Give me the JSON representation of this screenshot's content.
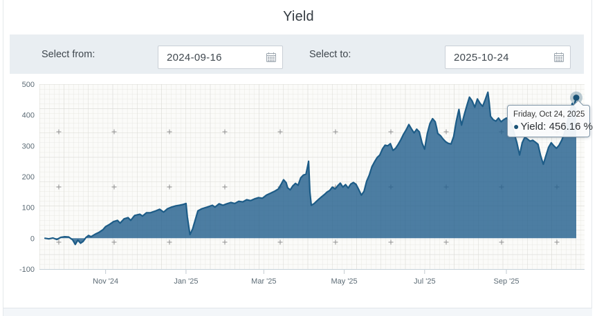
{
  "header": {
    "title": "Yield"
  },
  "controls": {
    "from": {
      "label": "Select from:",
      "value": "2024-09-16"
    },
    "to": {
      "label": "Select to:",
      "value": "2025-10-24"
    }
  },
  "colors": {
    "accent_line": "#1d5c87",
    "area_fill": "rgba(32,94,140,0.8)",
    "marker": "#1a5276",
    "panel_bg": "#e9eef2",
    "grid_minor": "#e7e7e2",
    "grid_major": "#d9d9d4",
    "axis_label": "#5c6b75"
  },
  "chart_data": {
    "type": "area",
    "title": "Yield",
    "xlabel": "",
    "ylabel": "",
    "unit": "%",
    "ylim": [
      -100,
      500
    ],
    "xlim_days": [
      0,
      403
    ],
    "x_start_date": "2024-09-16",
    "x_end_date": "2025-10-24",
    "threshold": 0,
    "grid": true,
    "legend": false,
    "yticks": [
      500,
      400,
      300,
      200,
      100,
      0,
      -100
    ],
    "xticks": [
      {
        "label": "Nov '24",
        "day": 46
      },
      {
        "label": "Jan '25",
        "day": 107
      },
      {
        "label": "Mar '25",
        "day": 166
      },
      {
        "label": "May '25",
        "day": 227
      },
      {
        "label": "Jul '25",
        "day": 288
      },
      {
        "label": "Sep '25",
        "day": 350
      }
    ],
    "series": [
      {
        "name": "Yield",
        "points": [
          [
            0,
            0
          ],
          [
            3,
            -2
          ],
          [
            6,
            1
          ],
          [
            9,
            -4
          ],
          [
            12,
            3
          ],
          [
            15,
            5
          ],
          [
            18,
            4
          ],
          [
            21,
            -5
          ],
          [
            23,
            -20
          ],
          [
            25,
            -6
          ],
          [
            27,
            -16
          ],
          [
            29,
            -10
          ],
          [
            31,
            2
          ],
          [
            33,
            9
          ],
          [
            35,
            5
          ],
          [
            38,
            13
          ],
          [
            41,
            19
          ],
          [
            44,
            28
          ],
          [
            46,
            38
          ],
          [
            49,
            45
          ],
          [
            52,
            54
          ],
          [
            55,
            58
          ],
          [
            57,
            49
          ],
          [
            60,
            63
          ],
          [
            63,
            67
          ],
          [
            65,
            58
          ],
          [
            68,
            74
          ],
          [
            72,
            78
          ],
          [
            74,
            72
          ],
          [
            77,
            83
          ],
          [
            80,
            83
          ],
          [
            84,
            89
          ],
          [
            87,
            94
          ],
          [
            90,
            85
          ],
          [
            93,
            96
          ],
          [
            96,
            101
          ],
          [
            99,
            105
          ],
          [
            102,
            107
          ],
          [
            105,
            110
          ],
          [
            107,
            113
          ],
          [
            108,
            70
          ],
          [
            110,
            12
          ],
          [
            112,
            30
          ],
          [
            114,
            60
          ],
          [
            116,
            89
          ],
          [
            119,
            96
          ],
          [
            123,
            101
          ],
          [
            127,
            107
          ],
          [
            129,
            101
          ],
          [
            132,
            112
          ],
          [
            135,
            107
          ],
          [
            138,
            112
          ],
          [
            141,
            116
          ],
          [
            144,
            113
          ],
          [
            147,
            120
          ],
          [
            150,
            118
          ],
          [
            153,
            125
          ],
          [
            156,
            122
          ],
          [
            159,
            128
          ],
          [
            162,
            132
          ],
          [
            165,
            130
          ],
          [
            168,
            140
          ],
          [
            171,
            146
          ],
          [
            174,
            152
          ],
          [
            177,
            160
          ],
          [
            179,
            174
          ],
          [
            181,
            190
          ],
          [
            183,
            180
          ],
          [
            184,
            164
          ],
          [
            186,
            157
          ],
          [
            188,
            170
          ],
          [
            190,
            178
          ],
          [
            192,
            172
          ],
          [
            194,
            196
          ],
          [
            196,
            205
          ],
          [
            198,
            208
          ],
          [
            199,
            228
          ],
          [
            200,
            250
          ],
          [
            201,
            150
          ],
          [
            202,
            107
          ],
          [
            204,
            112
          ],
          [
            206,
            120
          ],
          [
            208,
            128
          ],
          [
            210,
            135
          ],
          [
            212,
            142
          ],
          [
            214,
            150
          ],
          [
            216,
            155
          ],
          [
            218,
            166
          ],
          [
            220,
            160
          ],
          [
            222,
            170
          ],
          [
            224,
            179
          ],
          [
            226,
            166
          ],
          [
            228,
            174
          ],
          [
            230,
            163
          ],
          [
            232,
            176
          ],
          [
            234,
            181
          ],
          [
            236,
            175
          ],
          [
            238,
            158
          ],
          [
            240,
            140
          ],
          [
            242,
            152
          ],
          [
            244,
            185
          ],
          [
            246,
            205
          ],
          [
            248,
            232
          ],
          [
            250,
            248
          ],
          [
            252,
            262
          ],
          [
            254,
            270
          ],
          [
            256,
            290
          ],
          [
            258,
            302
          ],
          [
            260,
            300
          ],
          [
            262,
            307
          ],
          [
            264,
            285
          ],
          [
            266,
            292
          ],
          [
            268,
            305
          ],
          [
            270,
            320
          ],
          [
            272,
            338
          ],
          [
            274,
            352
          ],
          [
            276,
            369
          ],
          [
            278,
            355
          ],
          [
            280,
            342
          ],
          [
            282,
            354
          ],
          [
            284,
            345
          ],
          [
            286,
            310
          ],
          [
            288,
            289
          ],
          [
            290,
            340
          ],
          [
            292,
            372
          ],
          [
            294,
            388
          ],
          [
            296,
            378
          ],
          [
            297,
            360
          ],
          [
            298,
            340
          ],
          [
            300,
            333
          ],
          [
            302,
            322
          ],
          [
            304,
            313
          ],
          [
            306,
            308
          ],
          [
            308,
            306
          ],
          [
            310,
            330
          ],
          [
            312,
            380
          ],
          [
            314,
            418
          ],
          [
            315,
            390
          ],
          [
            316,
            367
          ],
          [
            318,
            400
          ],
          [
            320,
            430
          ],
          [
            322,
            458
          ],
          [
            324,
            446
          ],
          [
            326,
            425
          ],
          [
            328,
            452
          ],
          [
            330,
            438
          ],
          [
            332,
            428
          ],
          [
            334,
            450
          ],
          [
            336,
            474
          ],
          [
            337,
            440
          ],
          [
            338,
            396
          ],
          [
            340,
            385
          ],
          [
            342,
            380
          ],
          [
            344,
            390
          ],
          [
            346,
            378
          ],
          [
            348,
            385
          ],
          [
            350,
            390
          ],
          [
            352,
            382
          ],
          [
            354,
            370
          ],
          [
            356,
            340
          ],
          [
            358,
            310
          ],
          [
            360,
            270
          ],
          [
            361,
            290
          ],
          [
            362,
            310
          ],
          [
            364,
            328
          ],
          [
            366,
            322
          ],
          [
            368,
            315
          ],
          [
            370,
            318
          ],
          [
            372,
            312
          ],
          [
            374,
            305
          ],
          [
            376,
            268
          ],
          [
            378,
            240
          ],
          [
            380,
            268
          ],
          [
            382,
            295
          ],
          [
            384,
            310
          ],
          [
            386,
            300
          ],
          [
            388,
            292
          ],
          [
            390,
            302
          ],
          [
            392,
            318
          ],
          [
            394,
            340
          ],
          [
            396,
            372
          ],
          [
            398,
            408
          ],
          [
            400,
            438
          ],
          [
            401,
            425
          ],
          [
            402,
            442
          ],
          [
            403,
            456.16
          ]
        ]
      }
    ],
    "tooltip": {
      "date": "Friday, Oct 24, 2025",
      "bullet": "●",
      "text": "Yield: 456.16 %",
      "value": 456.16
    }
  }
}
